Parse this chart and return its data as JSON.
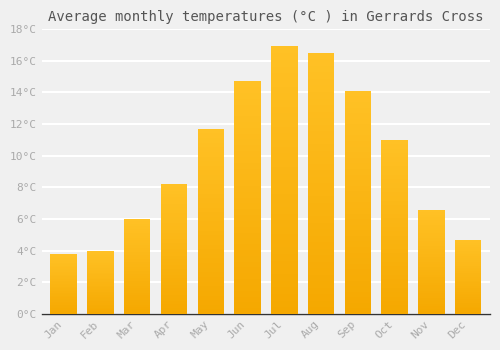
{
  "title": "Average monthly temperatures (°C ) in Gerrards Cross",
  "months": [
    "Jan",
    "Feb",
    "Mar",
    "Apr",
    "May",
    "Jun",
    "Jul",
    "Aug",
    "Sep",
    "Oct",
    "Nov",
    "Dec"
  ],
  "temperatures": [
    3.8,
    4.0,
    6.0,
    8.2,
    11.7,
    14.7,
    16.9,
    16.5,
    14.1,
    11.0,
    6.6,
    4.7
  ],
  "bar_color": "#FFC125",
  "bar_bottom_color": "#F5A800",
  "ylim": [
    0,
    18
  ],
  "yticks": [
    0,
    2,
    4,
    6,
    8,
    10,
    12,
    14,
    16,
    18
  ],
  "ytick_labels": [
    "0°C",
    "2°C",
    "4°C",
    "6°C",
    "8°C",
    "10°C",
    "12°C",
    "14°C",
    "16°C",
    "18°C"
  ],
  "background_color": "#f0f0f0",
  "grid_color": "#ffffff",
  "title_fontsize": 10,
  "tick_fontsize": 8,
  "tick_color": "#aaaaaa",
  "font_family": "monospace",
  "n_gradient_bands": 40
}
